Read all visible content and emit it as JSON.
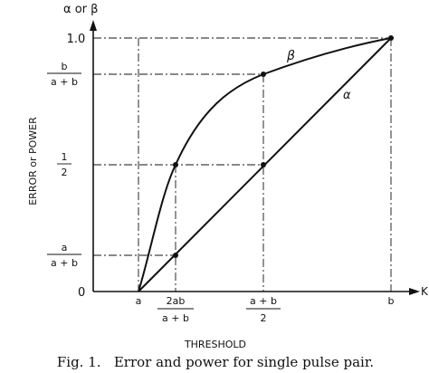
{
  "chart_data": {
    "type": "line",
    "ylabel": "ERROR or POWER",
    "xlabel": "THRESHOLD",
    "y_axis_title": "α or β",
    "x_axis_end_label": "K",
    "origin_label": "0",
    "caption": "Fig. 1.   Error and power for single pulse pair.",
    "x_ticks": [
      {
        "label": "a",
        "value": "a"
      },
      {
        "num": "2ab",
        "den": "a + b",
        "value": "2ab/(a+b)"
      },
      {
        "num": "a + b",
        "den": "2",
        "value": "(a+b)/2"
      },
      {
        "label": "b",
        "value": "b"
      }
    ],
    "y_ticks": [
      {
        "num": "a",
        "den": "a + b",
        "value": "a/(a+b)"
      },
      {
        "num": "1",
        "den": "2",
        "value": "1/2"
      },
      {
        "num": "b",
        "den": "a + b",
        "value": "b/(a+b)"
      },
      {
        "label": "1.0",
        "value": 1.0
      }
    ],
    "series": [
      {
        "name": "α",
        "shape": "straight line",
        "points": [
          [
            "a",
            0
          ],
          [
            "2ab/(a+b)",
            "a/(a+b)"
          ],
          [
            "(a+b)/2",
            "1/2"
          ],
          [
            "b",
            1.0
          ]
        ]
      },
      {
        "name": "β",
        "shape": "concave curve",
        "points": [
          [
            "a",
            0
          ],
          [
            "2ab/(a+b)",
            "1/2"
          ],
          [
            "(a+b)/2",
            "b/(a+b)"
          ],
          [
            "b",
            1.0
          ]
        ]
      }
    ]
  }
}
